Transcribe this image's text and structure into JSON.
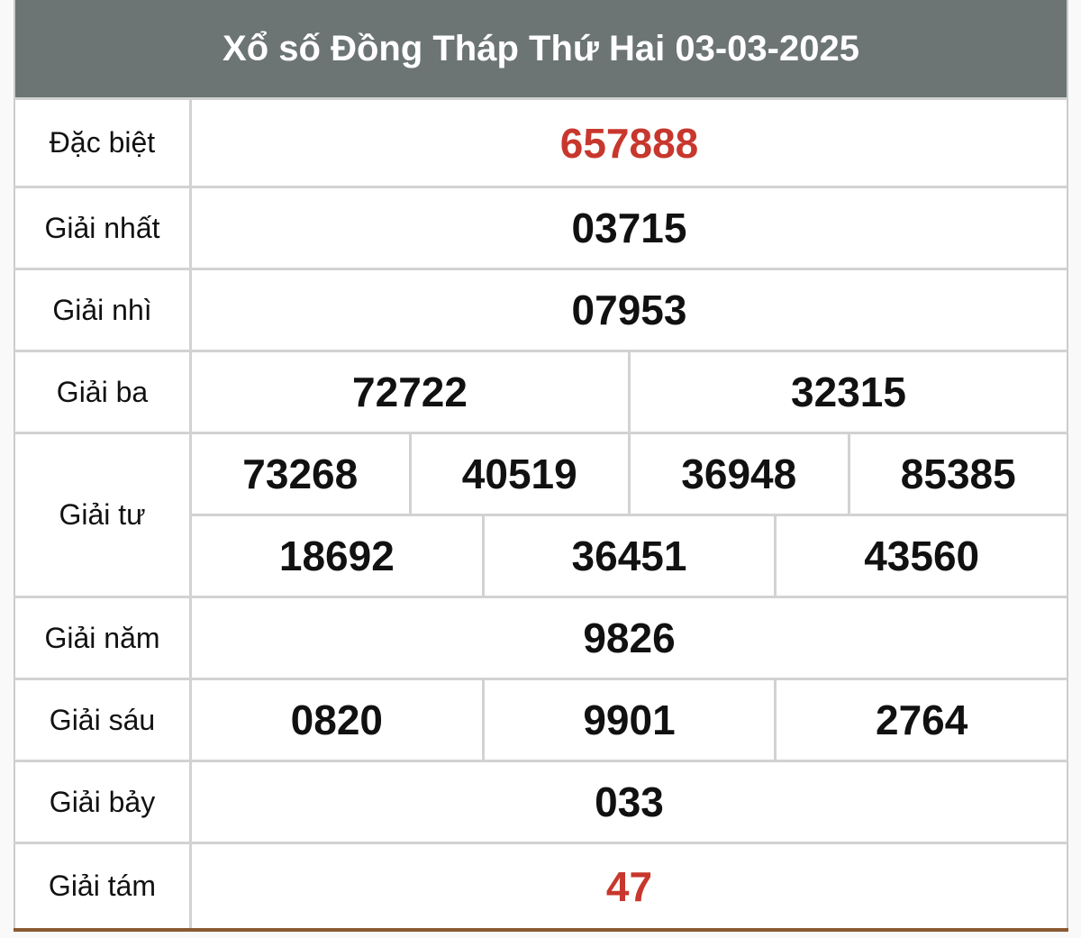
{
  "title": "Xổ số Đồng Tháp Thứ Hai 03-03-2025",
  "accent_color": "#c8372d",
  "header_color": "#6c7474",
  "prizes": [
    {
      "label": "Đặc biệt",
      "rows": [
        [
          "657888"
        ]
      ],
      "highlight": true
    },
    {
      "label": "Giải nhất",
      "rows": [
        [
          "03715"
        ]
      ]
    },
    {
      "label": "Giải nhì",
      "rows": [
        [
          "07953"
        ]
      ]
    },
    {
      "label": "Giải ba",
      "rows": [
        [
          "72722",
          "32315"
        ]
      ]
    },
    {
      "label": "Giải tư",
      "rows": [
        [
          "73268",
          "40519",
          "36948",
          "85385"
        ],
        [
          "18692",
          "36451",
          "43560"
        ]
      ]
    },
    {
      "label": "Giải năm",
      "rows": [
        [
          "9826"
        ]
      ]
    },
    {
      "label": "Giải sáu",
      "rows": [
        [
          "0820",
          "9901",
          "2764"
        ]
      ]
    },
    {
      "label": "Giải bảy",
      "rows": [
        [
          "033"
        ]
      ]
    },
    {
      "label": "Giải tám",
      "rows": [
        [
          "47"
        ]
      ],
      "highlight": true
    }
  ]
}
